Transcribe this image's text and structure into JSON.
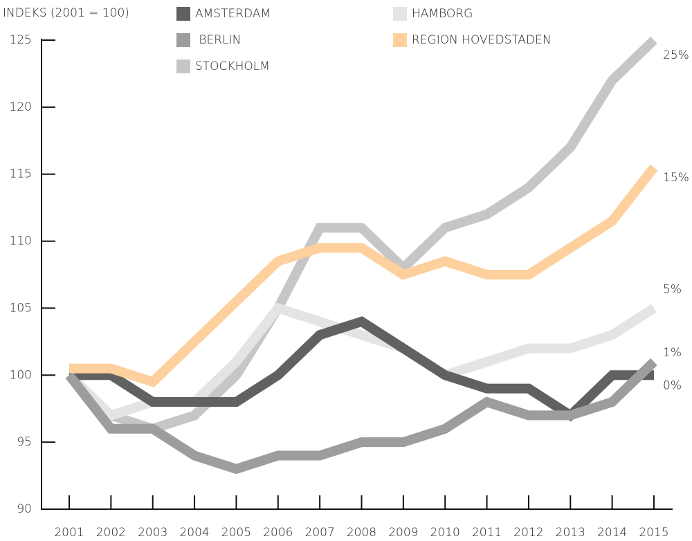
{
  "chart_data": {
    "type": "line",
    "y_axis_label": "INDEKS (2001 = 100)",
    "categories": [
      "2001",
      "2002",
      "2003",
      "2004",
      "2005",
      "2006",
      "2007",
      "2008",
      "2009",
      "2010",
      "2011",
      "2012",
      "2013",
      "2014",
      "2015"
    ],
    "ylim": [
      90,
      125
    ],
    "yticks": [
      90,
      95,
      100,
      105,
      110,
      115,
      120,
      125
    ],
    "series": [
      {
        "name": "AMSTERDAM",
        "color": "#616161",
        "values": [
          100,
          100,
          98,
          98,
          98,
          100,
          103,
          104,
          102,
          100,
          99,
          99,
          97,
          100,
          100
        ],
        "end_label": "0%"
      },
      {
        "name": " BERLIN",
        "color": "#9d9d9d",
        "values": [
          100,
          96,
          96,
          94,
          93,
          94,
          94,
          95,
          95,
          96,
          98,
          97,
          97,
          98,
          101
        ],
        "end_label": "1%"
      },
      {
        "name": "STOCKHOLM",
        "color": "#c6c6c6",
        "values": [
          100,
          97,
          96,
          97,
          100,
          105,
          111,
          111,
          108,
          111,
          112,
          114,
          117,
          122,
          125
        ],
        "end_label": "25%"
      },
      {
        "name": "HAMBORG",
        "color": "#e4e4e4",
        "values": [
          100,
          97,
          98,
          98,
          101,
          105,
          104,
          103,
          102,
          100,
          101,
          102,
          102,
          103,
          105
        ],
        "end_label": "5%"
      },
      {
        "name": "REGION HOVEDSTADEN",
        "color": "#fdd09d",
        "values": [
          100.5,
          100.5,
          99.5,
          102.5,
          105.5,
          108.5,
          109.5,
          109.5,
          107.5,
          108.5,
          107.5,
          107.5,
          109.5,
          111.5,
          115.5
        ],
        "end_label": "15%"
      }
    ]
  }
}
